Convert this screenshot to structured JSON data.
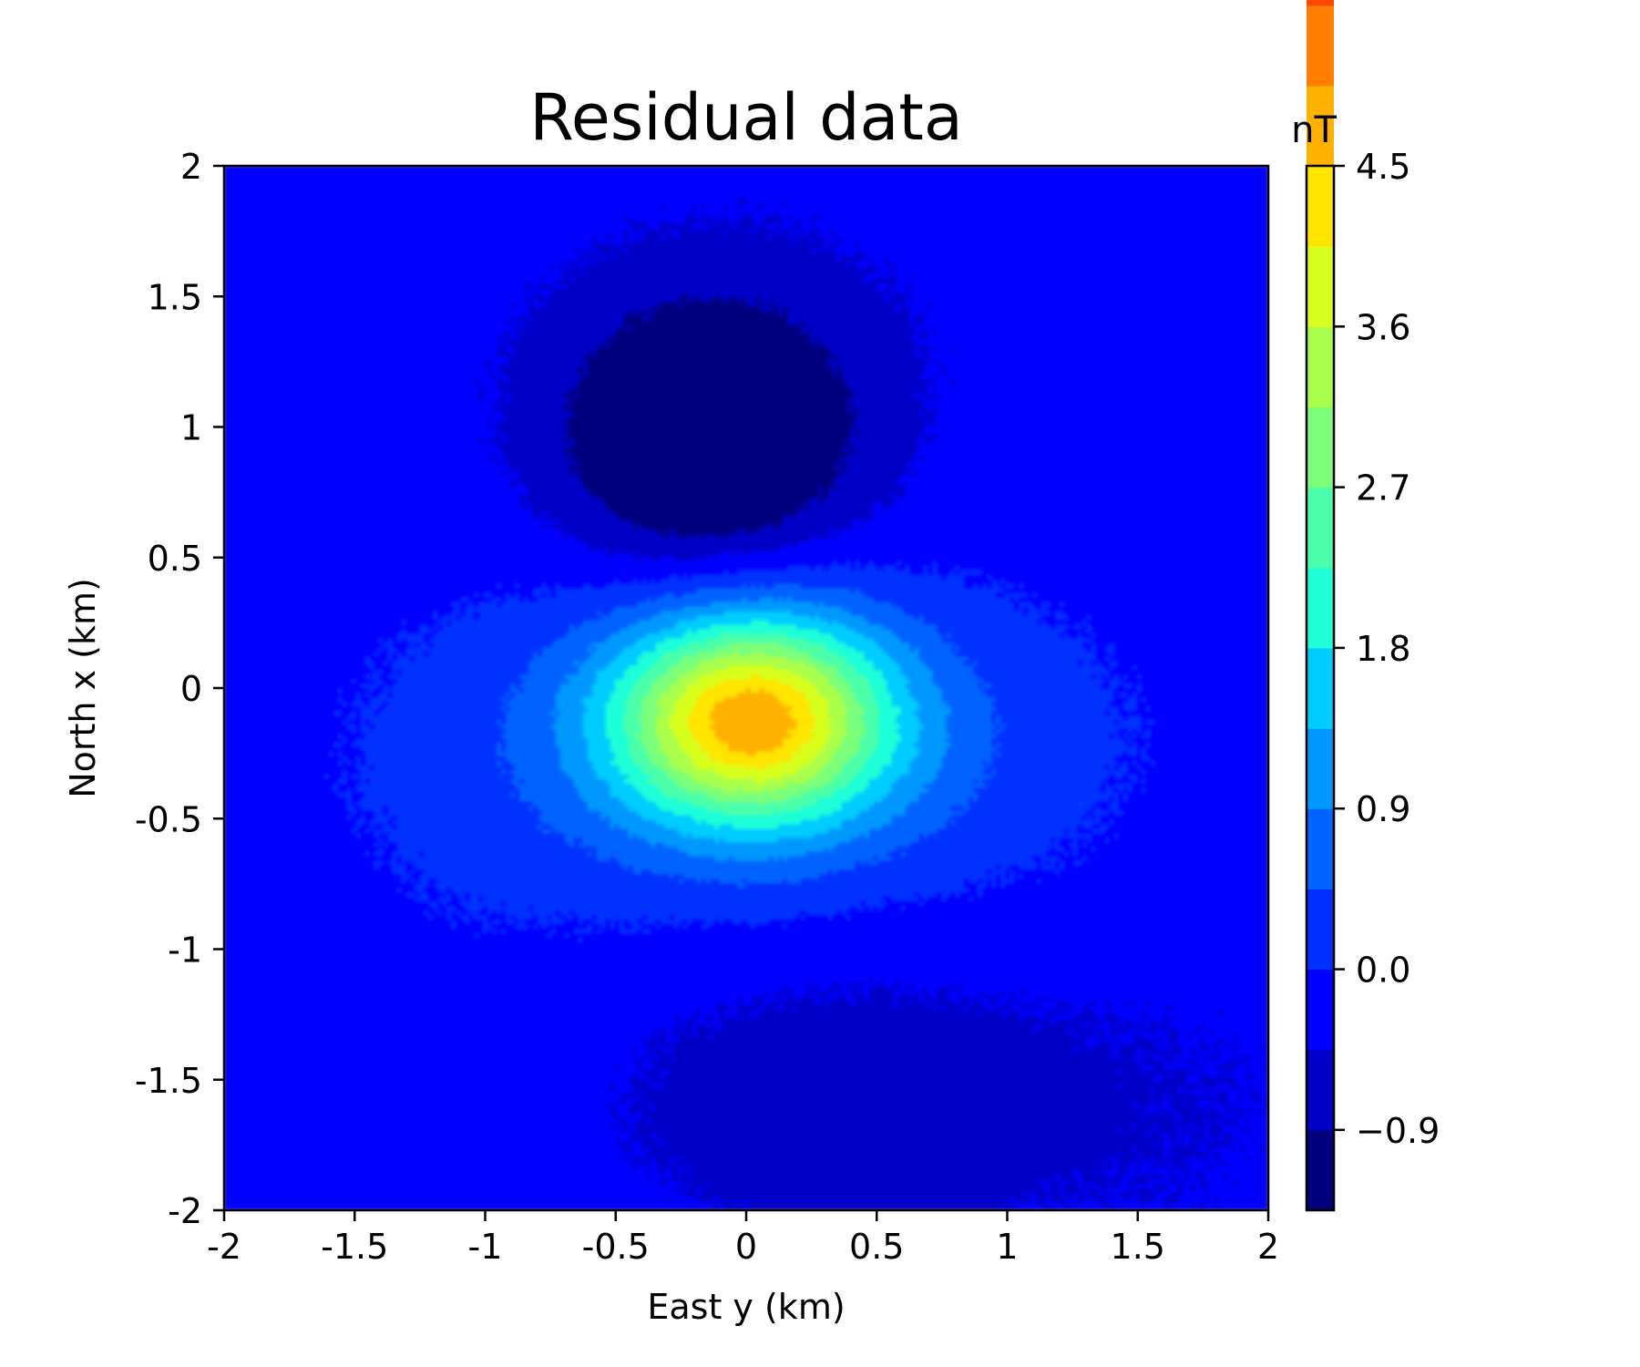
{
  "chart_data": {
    "type": "heatmap",
    "subtype": "filled-contour",
    "title": "Residual data",
    "xlabel": "East y (km)",
    "ylabel": "North x (km)",
    "xlim": [
      -2,
      2
    ],
    "ylim": [
      -2,
      2
    ],
    "xticks": [
      "-2",
      "-1.5",
      "-1",
      "-0.5",
      "0",
      "0.5",
      "1",
      "1.5",
      "2"
    ],
    "yticks": [
      "2",
      "1.5",
      "1",
      "0.5",
      "0",
      "-0.5",
      "-1",
      "-1.5",
      "-2"
    ],
    "grid": false,
    "colorbar": {
      "label": "nT",
      "range": [
        -1.35,
        4.5
      ],
      "level_step": 0.45,
      "tick_values": [
        4.5,
        3.6,
        2.7,
        1.8,
        0.9,
        0.0,
        -0.9
      ],
      "tick_labels": [
        "4.5",
        "3.6",
        "2.7",
        "1.8",
        "0.9",
        "0.0",
        "−0.9"
      ],
      "colormap": "jet",
      "colors": [
        "#00007f",
        "#0000c8",
        "#0000ff",
        "#0030ff",
        "#0064ff",
        "#0098ff",
        "#00ccff",
        "#1fffd8",
        "#4cffaa",
        "#7cff7a",
        "#aaff4c",
        "#d8ff1f",
        "#ffe500",
        "#ffb100",
        "#ff7d00",
        "#ff4800",
        "#ff1400",
        "#d80000",
        "#980000"
      ]
    },
    "features": [
      {
        "kind": "positive anomaly",
        "center": [
          0.0,
          -0.1
        ],
        "peak_nT": 4.5
      },
      {
        "kind": "negative anomaly",
        "center": [
          -0.15,
          0.9
        ],
        "min_nT": -1.35
      },
      {
        "kind": "negative lobe",
        "center": [
          0.3,
          -1.5
        ],
        "value_nT": -0.7
      }
    ]
  }
}
